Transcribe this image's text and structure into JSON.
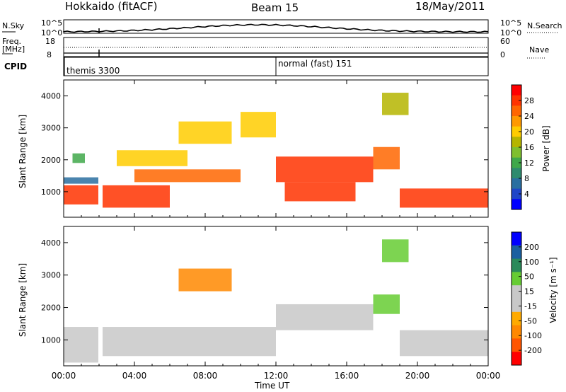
{
  "header": {
    "station": "Hokkaido (fitACF)",
    "beam": "Beam 15",
    "date": "18/May/2011"
  },
  "nsky_panel": {
    "left_label": "N.Sky",
    "right_label": "N.Search",
    "ticks_left": [
      "10^5",
      "10^0"
    ],
    "ticks_right": [
      "10^5",
      "10^0"
    ]
  },
  "freq_panel": {
    "left_label": "Freq.",
    "left_unit": "[MHz]",
    "right_label": "Nave",
    "ticks_left": [
      "18",
      "8"
    ],
    "ticks_right": [
      "60",
      "0"
    ]
  },
  "cpid_panel": {
    "label": "CPID",
    "modes": [
      {
        "text": "themis 3300",
        "start_hour": 0
      },
      {
        "text": "normal (fast) 151",
        "start_hour": 12
      }
    ]
  },
  "chart_data": [
    {
      "type": "heatmap",
      "title": "Power",
      "xlabel": "",
      "ylabel": "Slant Range [km]",
      "xlim": [
        0,
        24
      ],
      "ylim": [
        200,
        4500
      ],
      "yticks": [
        "1000",
        "2000",
        "3000",
        "4000"
      ],
      "colorbar": {
        "label": "Power [dB]",
        "ticks": [
          "28",
          "24",
          "20",
          "16",
          "12",
          "8",
          "4"
        ],
        "colors": [
          "#ff0000",
          "#ff3300",
          "#ff6600",
          "#ff9900",
          "#ffcc00",
          "#b5b500",
          "#7fbf2e",
          "#3fa84a",
          "#2e8b6e",
          "#2a6fa0",
          "#1f45c8",
          "#0000ff"
        ]
      },
      "bands": [
        {
          "t0": 0.0,
          "t1": 2.0,
          "r0": 600,
          "r1": 1200,
          "level": 26
        },
        {
          "t0": 0.0,
          "t1": 2.0,
          "r0": 1250,
          "r1": 1450,
          "level": 6
        },
        {
          "t0": 0.5,
          "t1": 1.2,
          "r0": 1900,
          "r1": 2200,
          "level": 12
        },
        {
          "t0": 2.2,
          "t1": 6.0,
          "r0": 500,
          "r1": 1200,
          "level": 26
        },
        {
          "t0": 4.0,
          "t1": 10.0,
          "r0": 1300,
          "r1": 1700,
          "level": 24
        },
        {
          "t0": 3.0,
          "t1": 7.0,
          "r0": 1800,
          "r1": 2300,
          "level": 18
        },
        {
          "t0": 6.5,
          "t1": 9.5,
          "r0": 2500,
          "r1": 3200,
          "level": 18
        },
        {
          "t0": 10.0,
          "t1": 12.0,
          "r0": 2700,
          "r1": 3500,
          "level": 20
        },
        {
          "t0": 12.0,
          "t1": 17.5,
          "r0": 1300,
          "r1": 2100,
          "level": 26
        },
        {
          "t0": 12.5,
          "t1": 16.5,
          "r0": 700,
          "r1": 1300,
          "level": 26
        },
        {
          "t0": 17.5,
          "t1": 19.0,
          "r0": 1700,
          "r1": 2400,
          "level": 24
        },
        {
          "t0": 19.0,
          "t1": 24.0,
          "r0": 500,
          "r1": 1100,
          "level": 26
        },
        {
          "t0": 18.0,
          "t1": 19.5,
          "r0": 3400,
          "r1": 4100,
          "level": 16
        }
      ]
    },
    {
      "type": "heatmap",
      "title": "Velocity",
      "xlabel": "Time UT",
      "ylabel": "Slant Range [km]",
      "xlim": [
        0,
        24
      ],
      "ylim": [
        200,
        4500
      ],
      "yticks": [
        "1000",
        "2000",
        "3000",
        "4000"
      ],
      "xticks": [
        "00:00",
        "04:00",
        "08:00",
        "12:00",
        "16:00",
        "20:00",
        "00:00"
      ],
      "colorbar": {
        "label": "Velocity [m s⁻¹]",
        "ticks": [
          "200",
          "100",
          "50",
          "15",
          "-15",
          "-50",
          "-100",
          "-200"
        ],
        "colors": [
          "#0000ff",
          "#1a5fa0",
          "#2a8a5a",
          "#66cc33",
          "#c8c8c8",
          "#c8c8c8",
          "#ffaa00",
          "#ff8800",
          "#ff5500",
          "#ff0000"
        ]
      },
      "bands": [
        {
          "t0": 0.0,
          "t1": 2.0,
          "r0": 300,
          "r1": 1400,
          "level": 0
        },
        {
          "t0": 2.2,
          "t1": 12.0,
          "r0": 500,
          "r1": 1400,
          "level": 0
        },
        {
          "t0": 6.5,
          "t1": 9.5,
          "r0": 2500,
          "r1": 3200,
          "level": -60
        },
        {
          "t0": 12.0,
          "t1": 17.5,
          "r0": 1300,
          "r1": 2100,
          "level": 0
        },
        {
          "t0": 17.5,
          "t1": 19.0,
          "r0": 1800,
          "r1": 2400,
          "level": 40
        },
        {
          "t0": 19.0,
          "t1": 24.0,
          "r0": 500,
          "r1": 1300,
          "level": 0
        },
        {
          "t0": 18.0,
          "t1": 19.5,
          "r0": 3400,
          "r1": 4100,
          "level": 40
        }
      ]
    }
  ]
}
